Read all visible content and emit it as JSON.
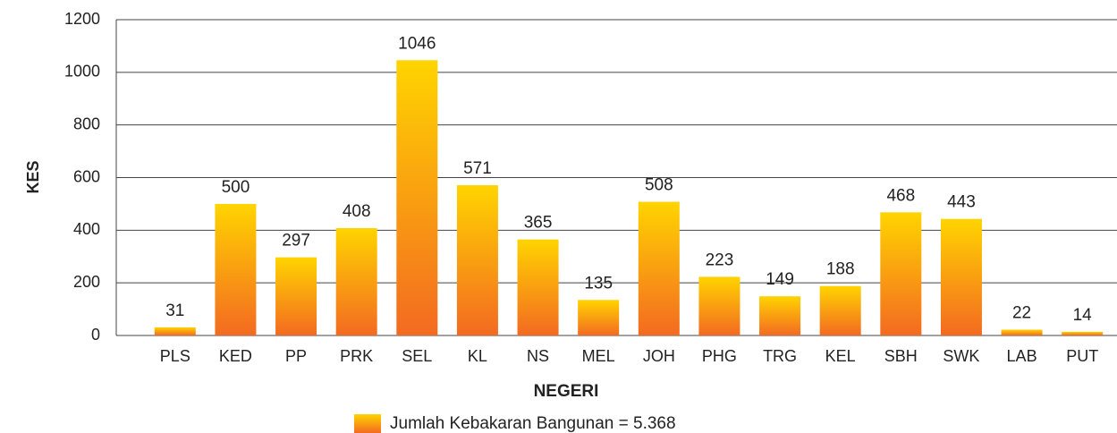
{
  "chart_data": {
    "type": "bar",
    "x_label": "NEGERI",
    "y_label": "KES",
    "categories": [
      "PLS",
      "KED",
      "PP",
      "PRK",
      "SEL",
      "KL",
      "NS",
      "MEL",
      "JOH",
      "PHG",
      "TRG",
      "KEL",
      "SBH",
      "SWK",
      "LAB",
      "PUT"
    ],
    "series": [
      {
        "name": "Jumlah Kebakaran Bangunan = 5.368",
        "gradient": [
          "#ffd400",
          "#f36a21"
        ],
        "values": [
          31,
          500,
          297,
          408,
          1046,
          571,
          365,
          135,
          508,
          223,
          149,
          188,
          468,
          443,
          22,
          14
        ]
      }
    ],
    "ylim": [
      0,
      1200
    ],
    "yticks": [
      0,
      200,
      400,
      600,
      800,
      1000,
      1200
    ],
    "grid": true,
    "legend": "bottom"
  }
}
